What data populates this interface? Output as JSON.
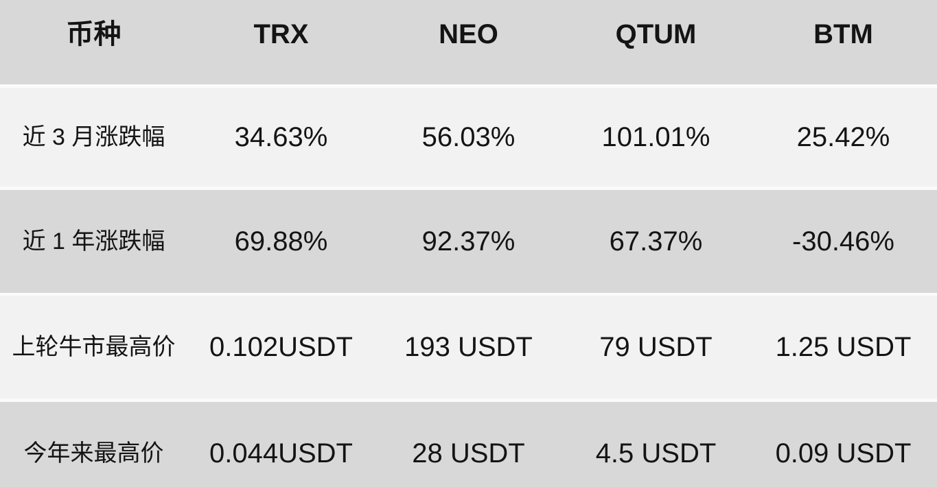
{
  "chart_data": {
    "type": "table",
    "title": "",
    "columns": [
      "币种",
      "TRX",
      "NEO",
      "QTUM",
      "BTM"
    ],
    "rows": [
      {
        "label": "近 3 月涨跌幅",
        "values": [
          "34.63%",
          "56.03%",
          "101.01%",
          "25.42%"
        ]
      },
      {
        "label": "近 1 年涨跌幅",
        "values": [
          "69.88%",
          "92.37%",
          "67.37%",
          "-30.46%"
        ]
      },
      {
        "label": "上轮牛市最高价",
        "values": [
          "0.102USDT",
          "193 USDT",
          "79 USDT",
          "1.25 USDT"
        ]
      },
      {
        "label": "今年来最高价",
        "values": [
          "0.044USDT",
          "28 USDT",
          "4.5 USDT",
          "0.09 USDT"
        ]
      }
    ],
    "layout": {
      "striping": [
        "header-dark",
        "light",
        "dark",
        "light",
        "dark"
      ],
      "grid": "off",
      "column_alignment": "center"
    }
  },
  "colors": {
    "header_bg": "#d8d8d8",
    "row_dark_bg": "#d8d8d8",
    "row_light_bg": "#f2f2f2",
    "separator": "#fbfbfb",
    "text": "#141414"
  }
}
